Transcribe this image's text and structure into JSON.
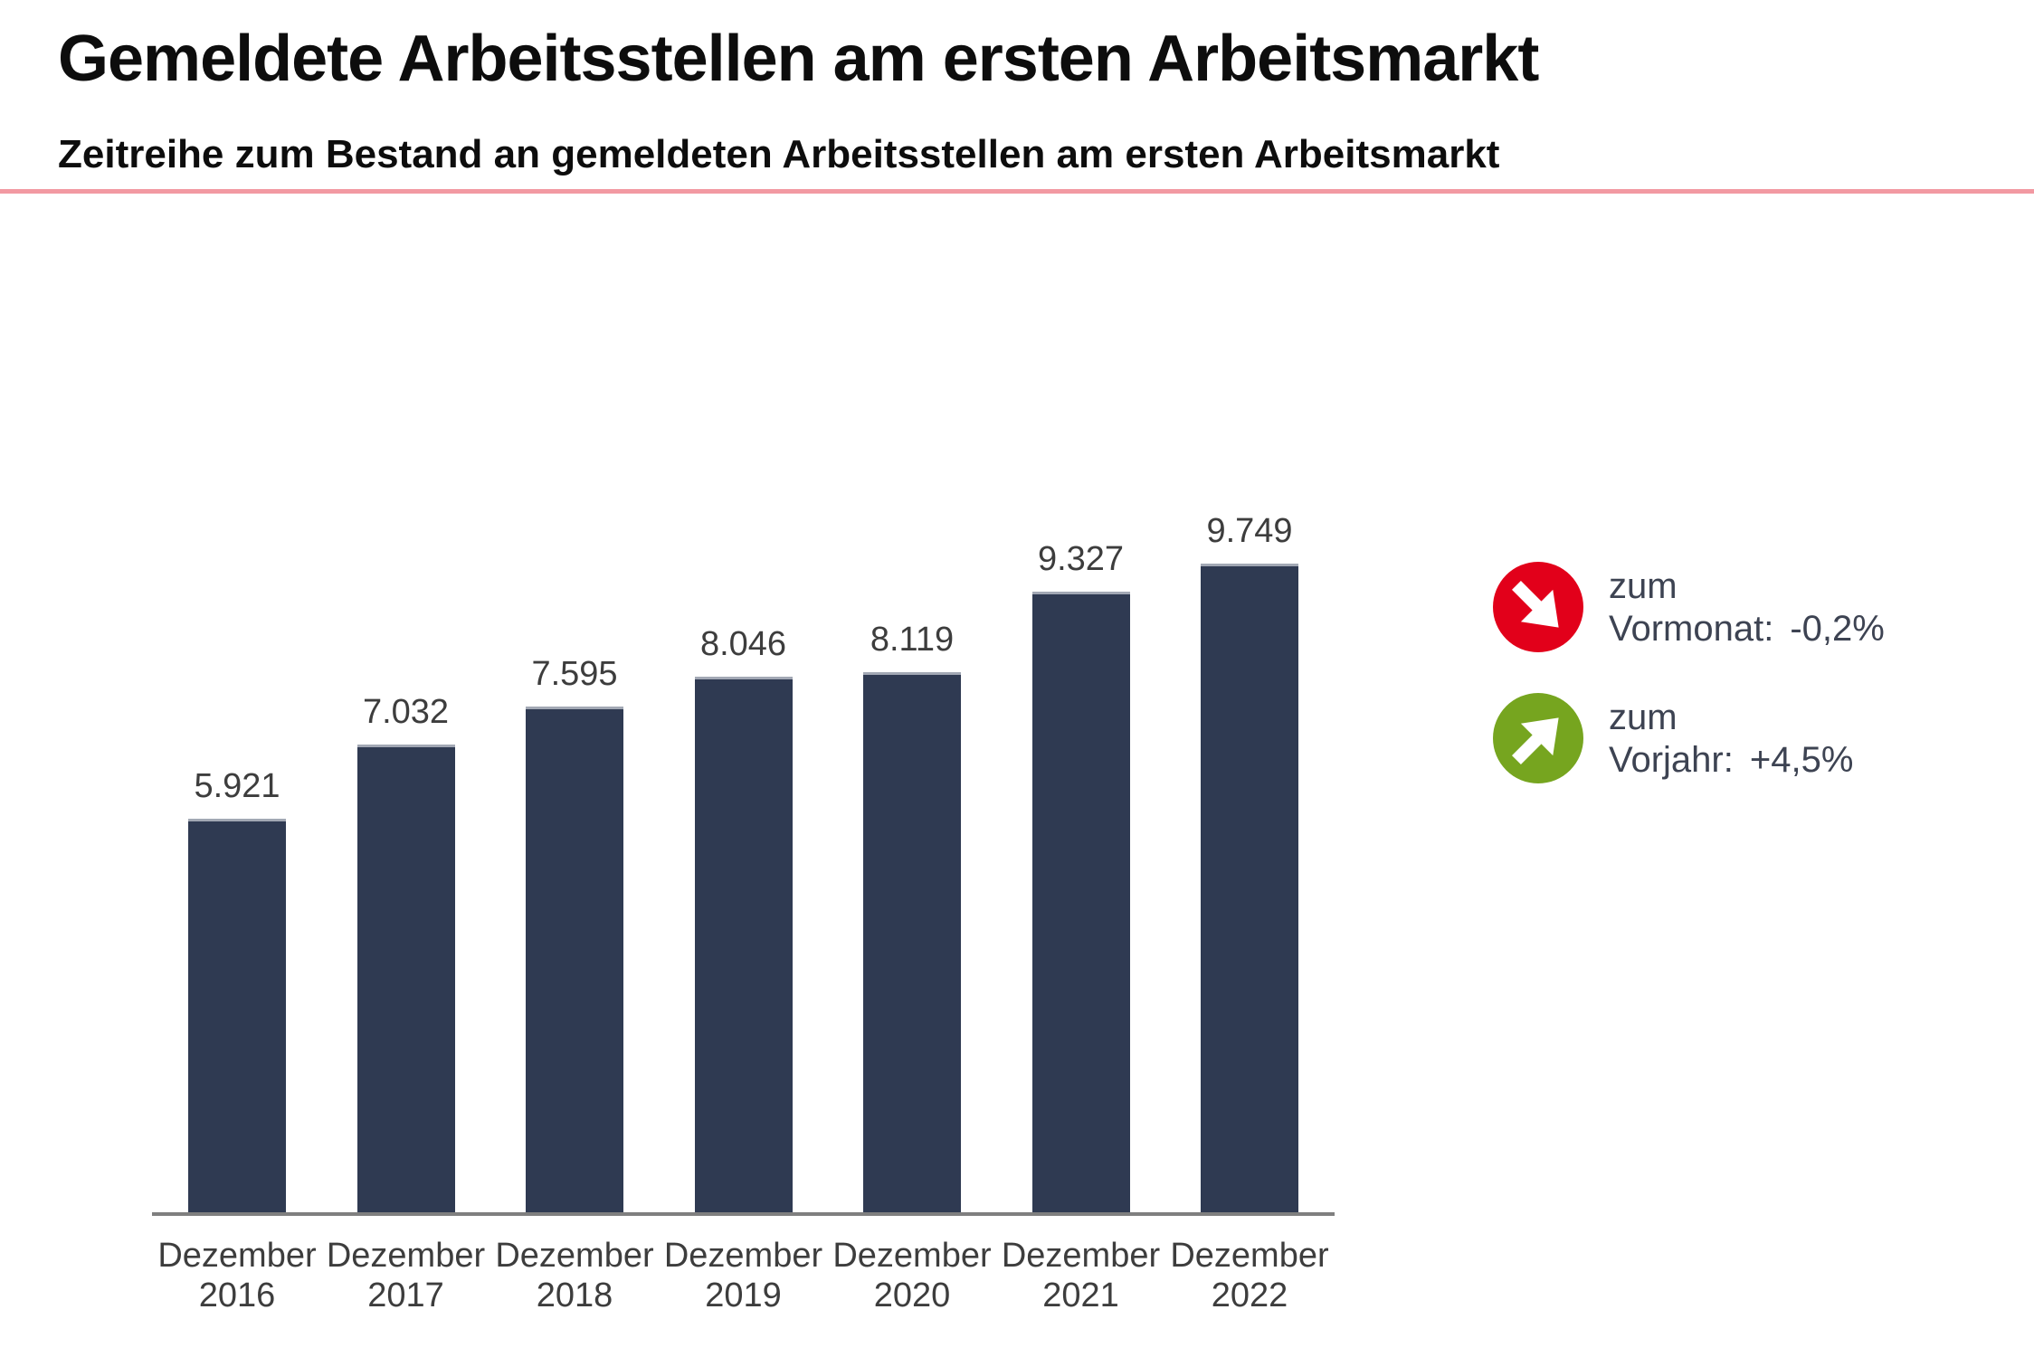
{
  "page": {
    "title": "Gemeldete Arbeitsstellen am ersten Arbeitsmarkt",
    "subtitle": "Zeitreihe zum Bestand an gemeldeten Arbeitsstellen am ersten Arbeitsmarkt",
    "accent_line_color": "#f299a2"
  },
  "chart_data": {
    "type": "bar",
    "title": "Gemeldete Arbeitsstellen am ersten Arbeitsmarkt",
    "categories": [
      "Dezember 2016",
      "Dezember 2017",
      "Dezember 2018",
      "Dezember 2019",
      "Dezember 2020",
      "Dezember 2021",
      "Dezember 2022"
    ],
    "values": [
      5921,
      7032,
      7595,
      8046,
      8119,
      9327,
      9749
    ],
    "value_labels": [
      "5.921",
      "7.032",
      "7.595",
      "8.046",
      "8.119",
      "9.327",
      "9.749"
    ],
    "xlabel": "",
    "ylabel": "",
    "ylim": [
      0,
      10200
    ],
    "grid": false,
    "legend": false,
    "bar_color": "#2f3a52",
    "axis_line_color": "#7f7f7f"
  },
  "indicators": [
    {
      "icon": "arrow-down-right-icon",
      "circle_color": "#e2001a",
      "line1": "zum",
      "line2": "Vormonat:",
      "value": "-0,2%"
    },
    {
      "icon": "arrow-up-right-icon",
      "circle_color": "#76a51f",
      "line1": "zum",
      "line2": "Vorjahr:",
      "value": "+4,5%"
    }
  ]
}
